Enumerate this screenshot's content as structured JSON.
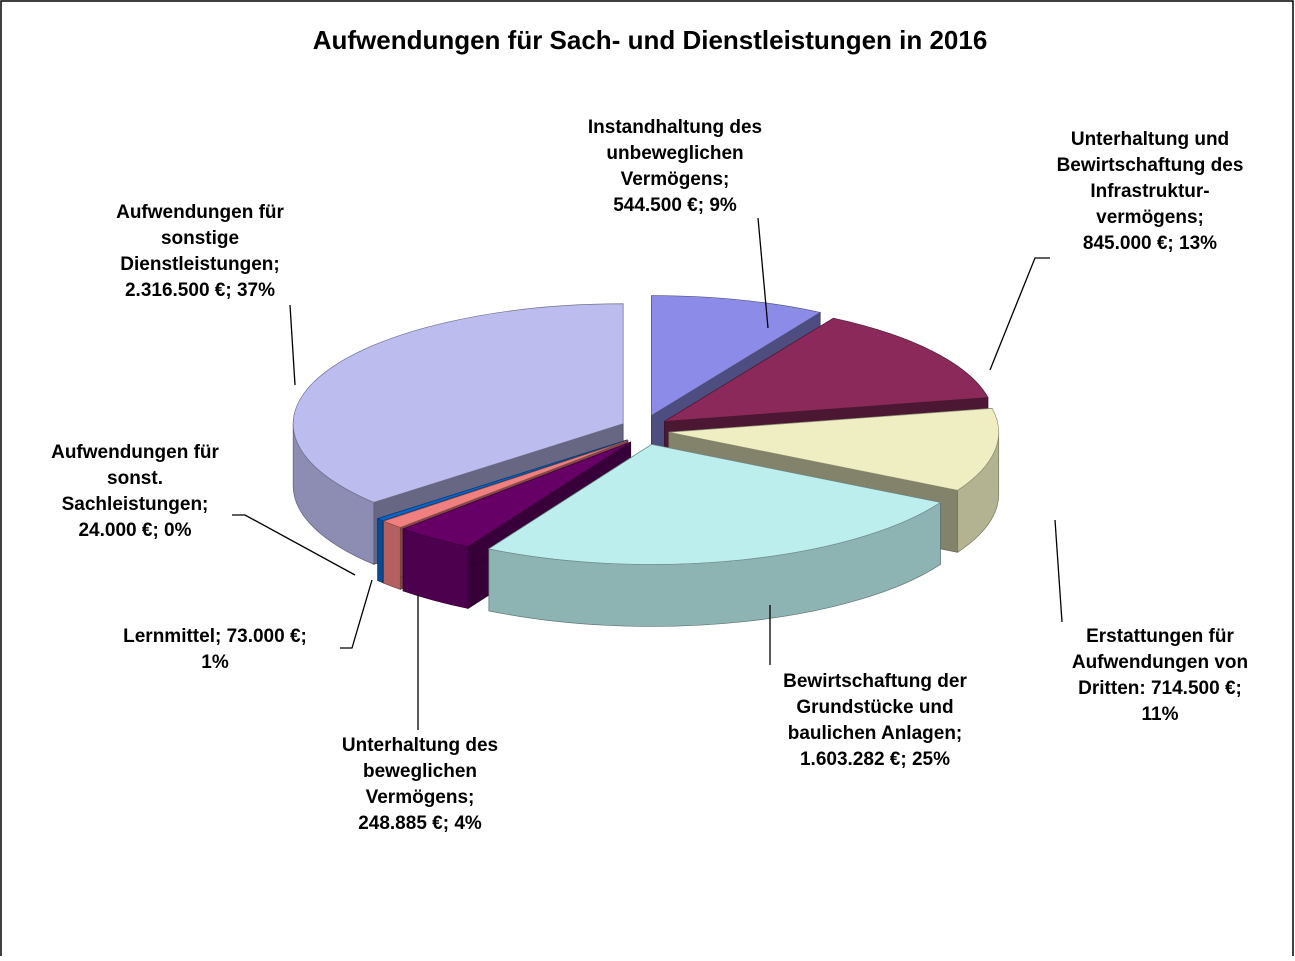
{
  "chart_data": {
    "type": "pie3d",
    "title": "Aufwendungen für Sach- und Dienstleistungen in 2016",
    "categories": [
      "Instandhaltung des unbeweglichen Vermögens",
      "Unterhaltung und Bewirtschaftung des Infrastrukturvermögens",
      "Erstattungen für Aufwendungen von Dritten",
      "Bewirtschaftung der Grundstücke und baulichen Anlagen",
      "Unterhaltung des beweglichen Vermögens",
      "Lernmittel",
      "Aufwendungen für sonst. Sachleistungen",
      "Aufwendungen für sonstige Dienstleistungen"
    ],
    "values": [
      544500,
      845000,
      714500,
      1603282,
      248885,
      73000,
      24000,
      2316500
    ],
    "colors": [
      "#8c8ce8",
      "#8b2a5a",
      "#eeeec2",
      "#bdeeee",
      "#660066",
      "#f08080",
      "#0a64c8",
      "#bcbcee"
    ],
    "label_lines": [
      [
        "Instandhaltung des",
        "unbeweglichen",
        "Vermögens;",
        "544.500 €; 9%"
      ],
      [
        "Unterhaltung und",
        "Bewirtschaftung des",
        "Infrastruktur-",
        "vermögens;",
        "845.000 €; 13%"
      ],
      [
        "Erstattungen für",
        "Aufwendungen von",
        "Dritten: 714.500 €;",
        "11%"
      ],
      [
        "Bewirtschaftung der",
        "Grundstücke und",
        "baulichen Anlagen;",
        "1.603.282 €; 25%"
      ],
      [
        "Unterhaltung des",
        "beweglichen",
        "Vermögens;",
        "248.885 €; 4%"
      ],
      [
        "Lernmittel; 73.000 €;",
        "1%"
      ],
      [
        "Aufwendungen für",
        "sonst.",
        "Sachleistungen;",
        "24.000 €; 0%"
      ],
      [
        "Aufwendungen für",
        "sonstige",
        "Dienstleistungen;",
        "2.316.500 €; 37%"
      ]
    ]
  }
}
